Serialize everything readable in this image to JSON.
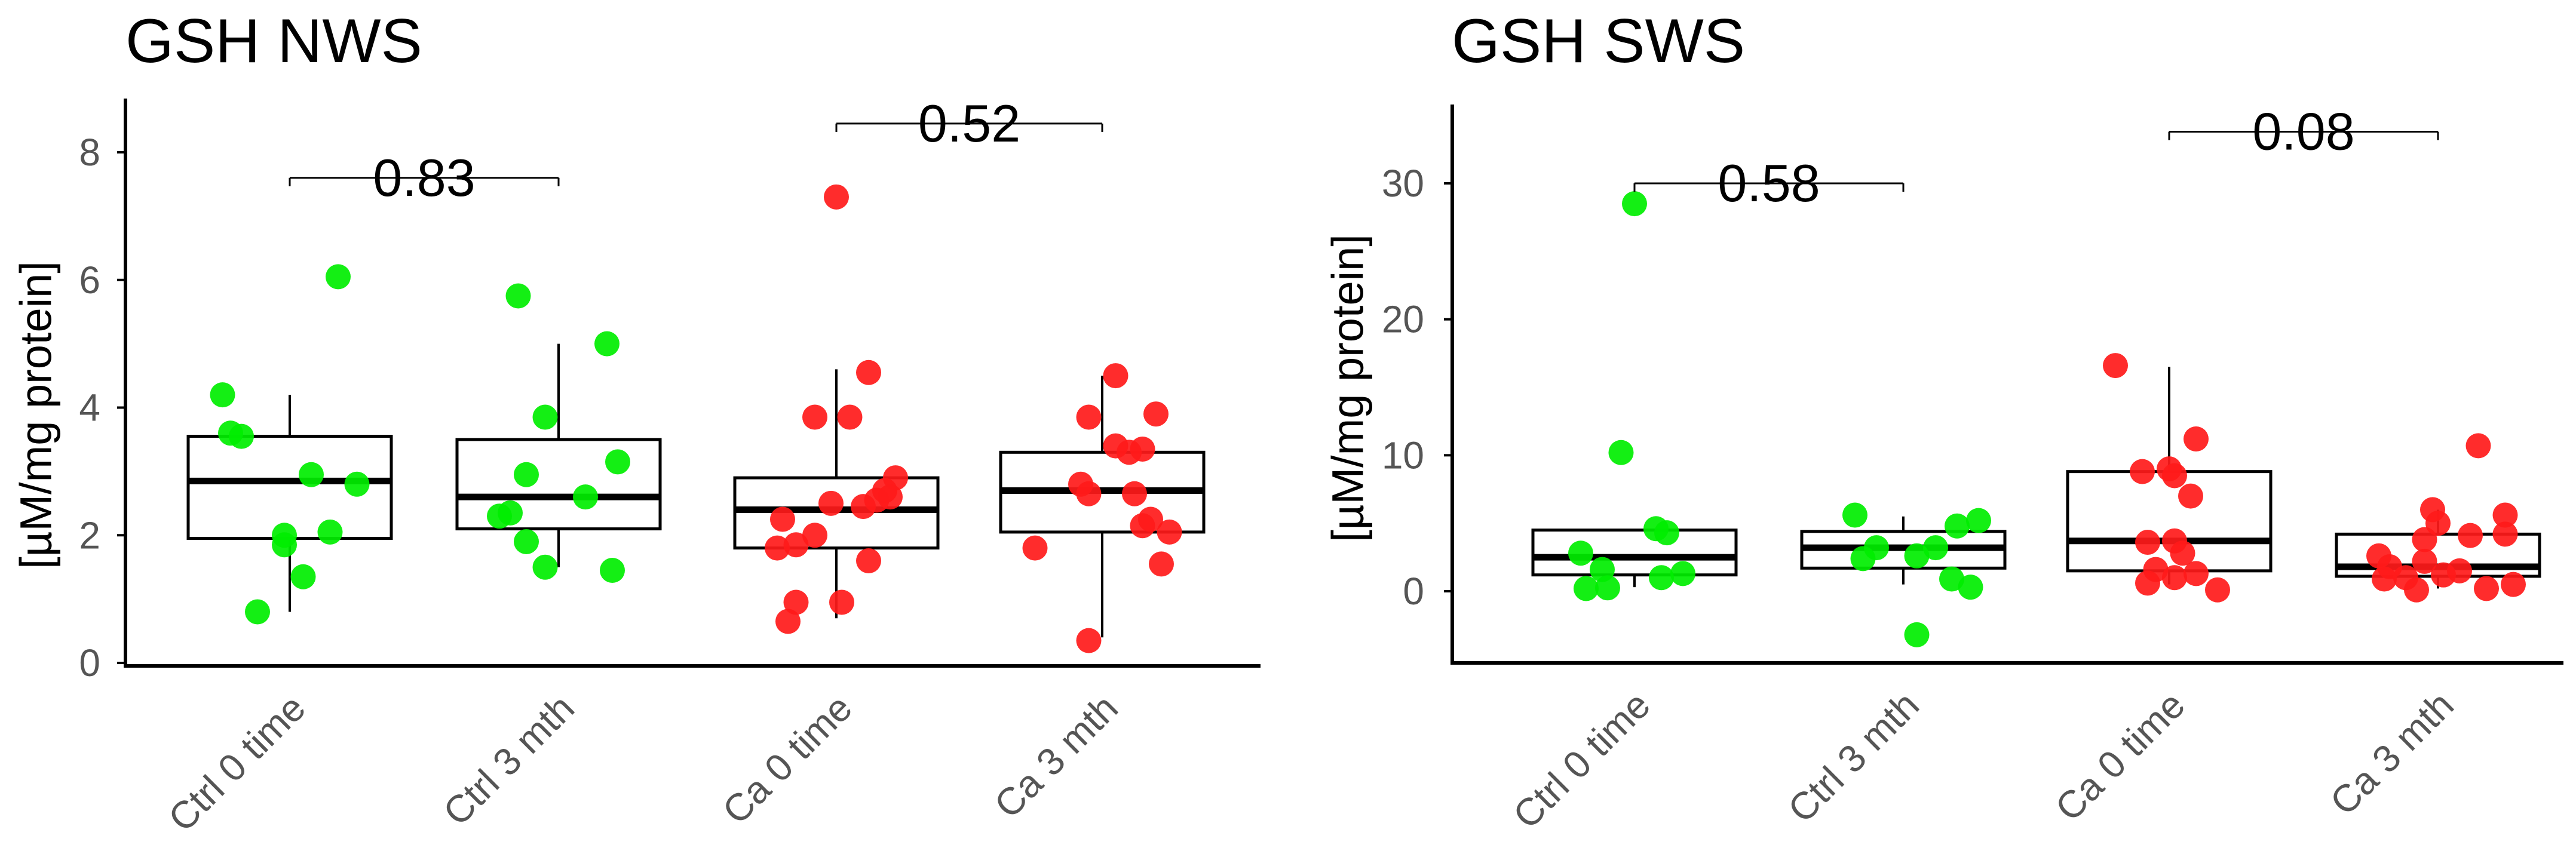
{
  "colors": {
    "ctrl": "#00ee00",
    "ca": "#ff1a1a",
    "box": "#000000"
  },
  "chart_data": [
    {
      "type": "boxplot",
      "title": "GSH NWS",
      "xlabel": "",
      "ylabel": "[µM/mg protein]",
      "ylim": [
        0,
        8.8
      ],
      "yticks": [
        0,
        2,
        4,
        6,
        8
      ],
      "categories": [
        "Ctrl 0 time",
        "Ctrl 3 mth",
        "Ca 0 time",
        "Ca 3 mth"
      ],
      "group_colors": [
        "ctrl",
        "ctrl",
        "ca",
        "ca"
      ],
      "boxes": [
        {
          "min": 0.8,
          "q1": 1.95,
          "median": 2.85,
          "q3": 3.55,
          "max": 4.2
        },
        {
          "min": 1.5,
          "q1": 2.1,
          "median": 2.6,
          "q3": 3.5,
          "max": 5.0
        },
        {
          "min": 0.7,
          "q1": 1.8,
          "median": 2.4,
          "q3": 2.9,
          "max": 4.6
        },
        {
          "min": 0.4,
          "q1": 2.05,
          "median": 2.7,
          "q3": 3.3,
          "max": 4.5
        }
      ],
      "points": [
        [
          {
            "dx": -0.12,
            "y": 0.8
          },
          {
            "dx": 0.05,
            "y": 1.35
          },
          {
            "dx": -0.02,
            "y": 1.85
          },
          {
            "dx": 0.15,
            "y": 2.05
          },
          {
            "dx": -0.02,
            "y": 2.0
          },
          {
            "dx": 0.25,
            "y": 2.8
          },
          {
            "dx": 0.08,
            "y": 2.95
          },
          {
            "dx": -0.22,
            "y": 3.6
          },
          {
            "dx": -0.18,
            "y": 3.55
          },
          {
            "dx": -0.25,
            "y": 4.2
          },
          {
            "dx": 0.18,
            "y": 6.05
          }
        ],
        [
          {
            "dx": -0.05,
            "y": 1.5
          },
          {
            "dx": 0.2,
            "y": 1.45
          },
          {
            "dx": -0.12,
            "y": 1.9
          },
          {
            "dx": -0.22,
            "y": 2.3
          },
          {
            "dx": -0.18,
            "y": 2.35
          },
          {
            "dx": 0.1,
            "y": 2.6
          },
          {
            "dx": -0.12,
            "y": 2.95
          },
          {
            "dx": 0.22,
            "y": 3.15
          },
          {
            "dx": -0.05,
            "y": 3.85
          },
          {
            "dx": 0.18,
            "y": 5.0
          },
          {
            "dx": -0.15,
            "y": 5.75
          }
        ],
        [
          {
            "dx": -0.18,
            "y": 0.65
          },
          {
            "dx": -0.15,
            "y": 0.95
          },
          {
            "dx": 0.02,
            "y": 0.95
          },
          {
            "dx": 0.12,
            "y": 1.6
          },
          {
            "dx": -0.22,
            "y": 1.8
          },
          {
            "dx": -0.15,
            "y": 1.85
          },
          {
            "dx": -0.08,
            "y": 2.0
          },
          {
            "dx": -0.2,
            "y": 2.25
          },
          {
            "dx": 0.1,
            "y": 2.45
          },
          {
            "dx": 0.15,
            "y": 2.55
          },
          {
            "dx": 0.2,
            "y": 2.6
          },
          {
            "dx": 0.18,
            "y": 2.7
          },
          {
            "dx": -0.02,
            "y": 2.5
          },
          {
            "dx": 0.22,
            "y": 2.9
          },
          {
            "dx": 0.05,
            "y": 3.85
          },
          {
            "dx": -0.08,
            "y": 3.85
          },
          {
            "dx": 0.12,
            "y": 4.55
          },
          {
            "dx": 0.0,
            "y": 7.3
          }
        ],
        [
          {
            "dx": -0.05,
            "y": 0.35
          },
          {
            "dx": 0.22,
            "y": 1.55
          },
          {
            "dx": -0.25,
            "y": 1.8
          },
          {
            "dx": 0.25,
            "y": 2.05
          },
          {
            "dx": 0.15,
            "y": 2.15
          },
          {
            "dx": 0.18,
            "y": 2.25
          },
          {
            "dx": -0.05,
            "y": 2.65
          },
          {
            "dx": 0.12,
            "y": 2.65
          },
          {
            "dx": -0.08,
            "y": 2.8
          },
          {
            "dx": 0.1,
            "y": 3.3
          },
          {
            "dx": 0.15,
            "y": 3.35
          },
          {
            "dx": 0.05,
            "y": 3.4
          },
          {
            "dx": -0.05,
            "y": 3.85
          },
          {
            "dx": 0.2,
            "y": 3.9
          },
          {
            "dx": 0.05,
            "y": 4.5
          }
        ]
      ],
      "comparisons": [
        {
          "from": 0,
          "to": 1,
          "y": 7.6,
          "label": "0.83"
        },
        {
          "from": 2,
          "to": 3,
          "y": 8.45,
          "label": "0.52"
        }
      ]
    },
    {
      "type": "boxplot",
      "title": "GSH SWS",
      "xlabel": "",
      "ylabel": "[µM/mg protein]",
      "ylim": [
        -5,
        35
      ],
      "yticks": [
        0,
        10,
        20,
        30
      ],
      "categories": [
        "Ctrl 0 time",
        "Ctrl 3 mth",
        "Ca 0 time",
        "Ca 3 mth"
      ],
      "group_colors": [
        "ctrl",
        "ctrl",
        "ca",
        "ca"
      ],
      "boxes": [
        {
          "min": 0.3,
          "q1": 1.2,
          "median": 2.5,
          "q3": 4.5,
          "max": 4.5
        },
        {
          "min": 0.5,
          "q1": 1.7,
          "median": 3.2,
          "q3": 4.4,
          "max": 5.5
        },
        {
          "min": 0.5,
          "q1": 1.5,
          "median": 3.7,
          "q3": 8.8,
          "max": 16.5
        },
        {
          "min": 0.2,
          "q1": 1.1,
          "median": 1.8,
          "q3": 4.2,
          "max": 6.0
        }
      ],
      "points": [
        [
          {
            "dx": -0.18,
            "y": 0.2
          },
          {
            "dx": -0.1,
            "y": 0.25
          },
          {
            "dx": 0.1,
            "y": 1.0
          },
          {
            "dx": 0.18,
            "y": 1.3
          },
          {
            "dx": -0.12,
            "y": 1.6
          },
          {
            "dx": -0.2,
            "y": 2.8
          },
          {
            "dx": 0.12,
            "y": 4.3
          },
          {
            "dx": 0.08,
            "y": 4.6
          },
          {
            "dx": -0.05,
            "y": 10.2
          },
          {
            "dx": 0.0,
            "y": 28.5
          }
        ],
        [
          {
            "dx": 0.05,
            "y": -3.2
          },
          {
            "dx": 0.25,
            "y": 0.3
          },
          {
            "dx": 0.18,
            "y": 0.9
          },
          {
            "dx": -0.15,
            "y": 2.4
          },
          {
            "dx": 0.05,
            "y": 2.6
          },
          {
            "dx": -0.1,
            "y": 3.2
          },
          {
            "dx": 0.12,
            "y": 3.2
          },
          {
            "dx": 0.2,
            "y": 4.8
          },
          {
            "dx": 0.28,
            "y": 5.2
          },
          {
            "dx": -0.18,
            "y": 5.6
          }
        ],
        [
          {
            "dx": 0.18,
            "y": 0.1
          },
          {
            "dx": -0.08,
            "y": 0.6
          },
          {
            "dx": 0.02,
            "y": 1.0
          },
          {
            "dx": 0.1,
            "y": 1.3
          },
          {
            "dx": -0.05,
            "y": 1.6
          },
          {
            "dx": 0.05,
            "y": 2.8
          },
          {
            "dx": -0.08,
            "y": 3.6
          },
          {
            "dx": 0.02,
            "y": 3.7
          },
          {
            "dx": 0.08,
            "y": 7.0
          },
          {
            "dx": -0.1,
            "y": 8.8
          },
          {
            "dx": 0.0,
            "y": 9.0
          },
          {
            "dx": 0.02,
            "y": 8.5
          },
          {
            "dx": 0.1,
            "y": 11.2
          },
          {
            "dx": -0.2,
            "y": 16.6
          }
        ],
        [
          {
            "dx": -0.08,
            "y": 0.1
          },
          {
            "dx": 0.18,
            "y": 0.2
          },
          {
            "dx": 0.28,
            "y": 0.5
          },
          {
            "dx": -0.2,
            "y": 0.9
          },
          {
            "dx": -0.12,
            "y": 1.0
          },
          {
            "dx": 0.02,
            "y": 1.2
          },
          {
            "dx": 0.08,
            "y": 1.5
          },
          {
            "dx": -0.18,
            "y": 1.8
          },
          {
            "dx": -0.05,
            "y": 2.2
          },
          {
            "dx": -0.22,
            "y": 2.6
          },
          {
            "dx": -0.05,
            "y": 3.8
          },
          {
            "dx": 0.12,
            "y": 4.1
          },
          {
            "dx": 0.25,
            "y": 4.2
          },
          {
            "dx": 0.0,
            "y": 5.0
          },
          {
            "dx": -0.02,
            "y": 6.0
          },
          {
            "dx": 0.25,
            "y": 5.6
          },
          {
            "dx": 0.15,
            "y": 10.7
          }
        ]
      ],
      "comparisons": [
        {
          "from": 0,
          "to": 1,
          "y": 30.0,
          "label": "0.58"
        },
        {
          "from": 2,
          "to": 3,
          "y": 33.8,
          "label": "0.08"
        }
      ]
    }
  ]
}
